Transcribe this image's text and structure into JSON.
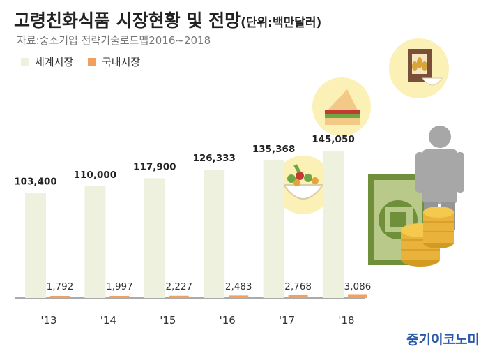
{
  "header": {
    "title": "고령친화식품 시장현황 및 전망",
    "unit": "(단위:백만달러)",
    "source": "자료:중소기업 전략기술로드맵2016~2018"
  },
  "credit": "중기이코노미",
  "chart_data": {
    "type": "bar",
    "categories": [
      "'13",
      "'14",
      "'15",
      "'16",
      "'17",
      "'18"
    ],
    "series": [
      {
        "name": "세계시장",
        "color": "#eef1de",
        "values": [
          103400,
          110000,
          117900,
          126333,
          135368,
          145050
        ],
        "labels": [
          "103,400",
          "110,000",
          "117,900",
          "126,333",
          "135,368",
          "145,050"
        ]
      },
      {
        "name": "국내시장",
        "color": "#f0a060",
        "values": [
          1792,
          1997,
          2227,
          2483,
          2768,
          3086
        ],
        "labels": [
          "1,792",
          "1,997",
          "2,227",
          "2,483",
          "2,768",
          "3,086"
        ]
      }
    ],
    "legend_position": "top-left",
    "grid": false,
    "ylim": [
      0,
      145050
    ]
  }
}
